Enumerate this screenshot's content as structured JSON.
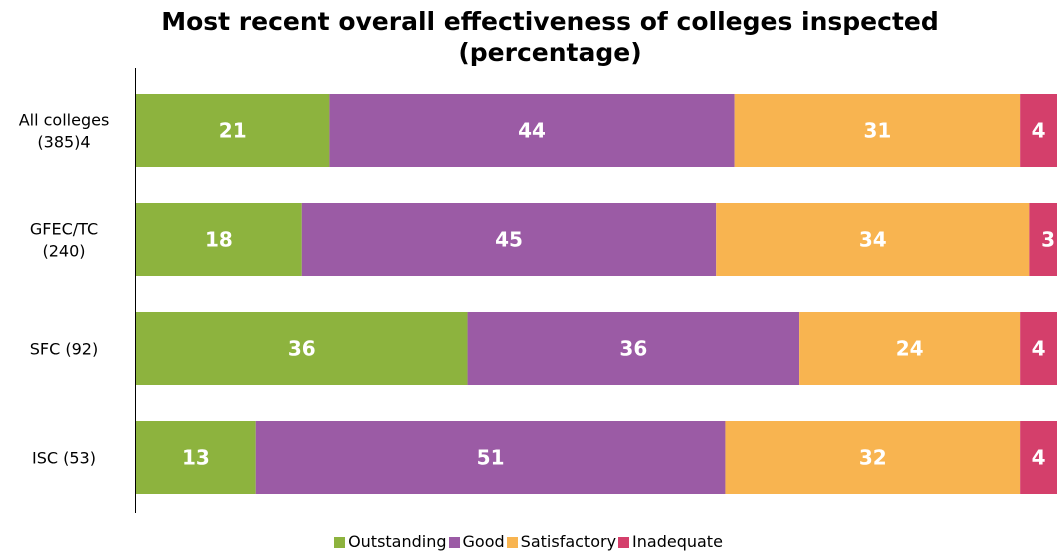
{
  "chart_data": {
    "type": "bar",
    "orientation": "horizontal",
    "stacked": true,
    "title": "Most recent overall effectiveness of colleges inspected (percentage)",
    "categories": [
      [
        "All colleges",
        "(385)4"
      ],
      [
        "GFEC/TC",
        "(240)"
      ],
      [
        "SFC (92)"
      ],
      [
        "ISC (53)"
      ]
    ],
    "series": [
      {
        "name": "Outstanding",
        "color": "#8DB33E",
        "values": [
          21,
          18,
          36,
          13
        ]
      },
      {
        "name": "Good",
        "color": "#9B5BA5",
        "values": [
          44,
          45,
          36,
          51
        ]
      },
      {
        "name": "Satisfactory",
        "color": "#F8B450",
        "values": [
          31,
          34,
          24,
          32
        ]
      },
      {
        "name": "Inadequate",
        "color": "#D43F6B",
        "values": [
          4,
          3,
          4,
          4
        ]
      }
    ],
    "xlim": [
      0,
      100
    ],
    "grid": false,
    "legend_position": "bottom"
  }
}
